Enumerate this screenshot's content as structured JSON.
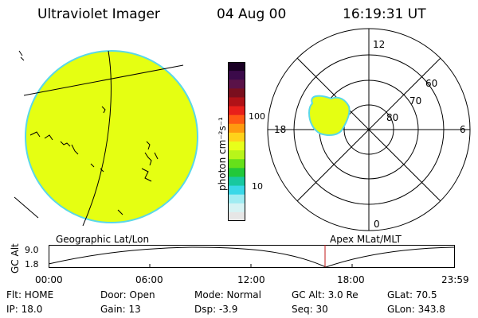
{
  "header": {
    "title": "Ultraviolet Imager",
    "date": "04 Aug 00",
    "time": "16:19:31 UT"
  },
  "colorbar": {
    "unit_label": "photon cm⁻²s⁻¹",
    "ticks": [
      "100",
      "10"
    ],
    "colors": [
      "#1a0024",
      "#3b0a4a",
      "#5a1248",
      "#7a0f1e",
      "#b01217",
      "#e8201a",
      "#ff5a14",
      "#ff9a0f",
      "#ffd21a",
      "#e8ff1a",
      "#b8f51a",
      "#66e01a",
      "#22c83a",
      "#18c8a0",
      "#3ad8e8",
      "#a0ecf2",
      "#d6f3f4",
      "#e6e6e6"
    ]
  },
  "panels": {
    "left_caption": "Geographic Lat/Lon",
    "right_caption": "Apex MLat/MLT",
    "fill_color": "#e5ff12",
    "edge_color": "#5ad8e8"
  },
  "polar": {
    "mlt_labels": [
      "12",
      "18",
      "6",
      "0"
    ],
    "lat_labels": [
      "60",
      "70",
      "80"
    ]
  },
  "timeline": {
    "ylabel": "GC Alt",
    "yticks": [
      "9.0",
      "1.8"
    ],
    "xticks": [
      "00:00",
      "06:00",
      "12:00",
      "18:00",
      "23:59"
    ],
    "marker_color": "#c01818"
  },
  "status": {
    "flt": "Flt: HOME",
    "door": "Door: Open",
    "mode": "Mode: Normal",
    "gc_alt": "GC Alt: 3.0 Re",
    "glat": "GLat:  70.5",
    "ip": "IP: 18.0",
    "gain": "Gain: 13",
    "dsp": "Dsp:    -3.9",
    "seq": "Seq: 30",
    "glon": "GLon: 343.8"
  }
}
